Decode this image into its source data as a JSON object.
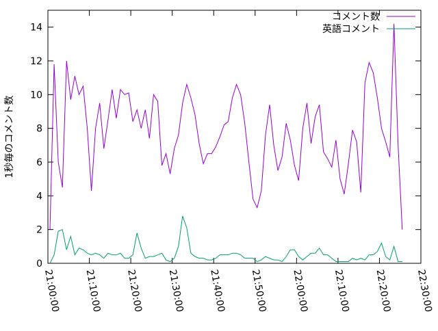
{
  "chart_data": {
    "type": "line",
    "y_label": "1秒毎のコメント数",
    "x": [
      "21:00:30",
      "21:01:30",
      "21:02:30",
      "21:03:30",
      "21:04:30",
      "21:05:30",
      "21:06:30",
      "21:07:30",
      "21:08:30",
      "21:09:30",
      "21:10:30",
      "21:11:30",
      "21:12:30",
      "21:13:30",
      "21:14:30",
      "21:15:30",
      "21:16:30",
      "21:17:30",
      "21:18:30",
      "21:19:30",
      "21:20:30",
      "21:21:30",
      "21:22:30",
      "21:23:30",
      "21:24:30",
      "21:25:30",
      "21:26:30",
      "21:27:30",
      "21:28:30",
      "21:29:30",
      "21:30:30",
      "21:31:30",
      "21:32:30",
      "21:33:30",
      "21:34:30",
      "21:35:30",
      "21:36:30",
      "21:37:30",
      "21:38:30",
      "21:39:30",
      "21:40:30",
      "21:41:30",
      "21:42:30",
      "21:43:30",
      "21:44:30",
      "21:45:30",
      "21:46:30",
      "21:47:30",
      "21:48:30",
      "21:49:30",
      "21:50:30",
      "21:51:30",
      "21:52:30",
      "21:53:30",
      "21:54:30",
      "21:55:30",
      "21:56:30",
      "21:57:30",
      "21:58:30",
      "21:59:30",
      "22:00:30",
      "22:01:30",
      "22:02:30",
      "22:03:30",
      "22:04:30",
      "22:05:30",
      "22:06:30",
      "22:07:30",
      "22:08:30",
      "22:09:30",
      "22:10:30",
      "22:11:30",
      "22:12:30",
      "22:13:30",
      "22:14:30",
      "22:15:30",
      "22:16:30",
      "22:17:30",
      "22:18:30",
      "22:19:30",
      "22:20:30",
      "22:21:30",
      "22:22:30",
      "22:23:30",
      "22:24:30",
      "22:25:30"
    ],
    "series": [
      {
        "name": "コメント数",
        "color": "#9400d3",
        "values": [
          2.0,
          11.8,
          6,
          4.5,
          12,
          9.7,
          11.1,
          10,
          10.5,
          8,
          4.3,
          8,
          9.5,
          6.8,
          8.5,
          10.3,
          8.6,
          10.3,
          10,
          10.1,
          8.4,
          9.1,
          8,
          9.1,
          7.4,
          10,
          9.6,
          5.8,
          6.5,
          5.3,
          6.8,
          7.6,
          9.5,
          10.6,
          9.8,
          8.8,
          7.1,
          5.9,
          6.5,
          6.5,
          6.9,
          7.5,
          8.2,
          8.4,
          9.8,
          10.6,
          10,
          8.3,
          6,
          3.8,
          3.3,
          4.3,
          7.6,
          9.4,
          7,
          5.5,
          6.3,
          8.3,
          7.3,
          5.8,
          4.9,
          8,
          9.5,
          7.1,
          8.7,
          9.4,
          6.6,
          6.2,
          5.7,
          7.3,
          5,
          4.1,
          5.9,
          7.9,
          7.2,
          4.2,
          10.7,
          11.9,
          11.3,
          9.8,
          8,
          7.2,
          6.3,
          14.2,
          7,
          2
        ]
      },
      {
        "name": "英語コメント",
        "color": "#009e73",
        "values": [
          0,
          0.5,
          1.9,
          2.0,
          0.8,
          1.6,
          0.5,
          0.9,
          0.8,
          0.6,
          0.5,
          0.6,
          0.5,
          0.3,
          0.6,
          0.5,
          0.5,
          0.6,
          0.3,
          0.3,
          0.5,
          1.8,
          0.9,
          0.3,
          0.4,
          0.4,
          0.5,
          0.6,
          0.2,
          0.1,
          0.3,
          1.0,
          2.8,
          2.1,
          0.6,
          0.4,
          0.3,
          0.3,
          0.2,
          0.2,
          0.3,
          0.5,
          0.5,
          0.5,
          0.6,
          0.6,
          0.5,
          0.3,
          0.3,
          0.3,
          0.1,
          0.2,
          0.4,
          0.3,
          0.2,
          0.2,
          0.1,
          0.4,
          0.8,
          0.8,
          0.4,
          0.2,
          0.4,
          0.6,
          0.6,
          0.9,
          0.5,
          0.5,
          0.3,
          0.1,
          0.1,
          0.1,
          0.1,
          0.3,
          0.2,
          0.3,
          0.2,
          0.5,
          0.5,
          0.7,
          1.2,
          0.4,
          0.2,
          1.0,
          0.1,
          0.1
        ]
      }
    ],
    "xlim": [
      "21:00:00",
      "22:30:00"
    ],
    "xticks": [
      "21:00:00",
      "21:10:00",
      "21:20:00",
      "21:30:00",
      "21:40:00",
      "21:50:00",
      "22:00:00",
      "22:10:00",
      "22:20:00",
      "22:30:00"
    ],
    "ylim": [
      0,
      15
    ],
    "yticks": [
      0,
      2,
      4,
      6,
      8,
      10,
      12,
      14
    ],
    "legend": "top-right"
  }
}
